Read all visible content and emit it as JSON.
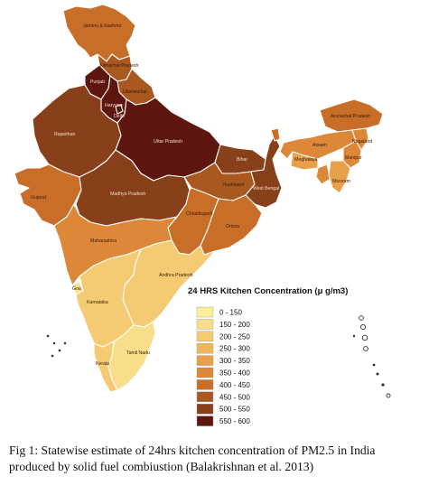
{
  "map": {
    "states": [
      {
        "id": "jk",
        "label": "Jammu & Kashmir",
        "bin": 6
      },
      {
        "id": "hp",
        "label": "Himachal Pradesh",
        "bin": 7
      },
      {
        "id": "pb",
        "label": "Punjab",
        "bin": 9
      },
      {
        "id": "hr",
        "label": "Haryana",
        "bin": 9
      },
      {
        "id": "uk",
        "label": "Uttaranchal",
        "bin": 7
      },
      {
        "id": "dl",
        "label": "Delhi",
        "bin": 9
      },
      {
        "id": "rj",
        "label": "Rajasthan",
        "bin": 8
      },
      {
        "id": "up",
        "label": "Uttar Pradesh",
        "bin": 9
      },
      {
        "id": "br",
        "label": "Bihar",
        "bin": 8
      },
      {
        "id": "gj",
        "label": "Gujarat",
        "bin": 6
      },
      {
        "id": "mp",
        "label": "Madhya Pradesh",
        "bin": 8
      },
      {
        "id": "jh",
        "label": "Jharkhand",
        "bin": 7
      },
      {
        "id": "wb",
        "label": "West Bengal",
        "bin": 8
      },
      {
        "id": "cg",
        "label": "Chhattisgarh",
        "bin": 6
      },
      {
        "id": "or",
        "label": "Orissa",
        "bin": 6
      },
      {
        "id": "mh",
        "label": "Maharashtra",
        "bin": 5
      },
      {
        "id": "ap",
        "label": "Andhra Pradesh",
        "bin": 2
      },
      {
        "id": "ka",
        "label": "Karnataka",
        "bin": 2
      },
      {
        "id": "ga",
        "label": "Goa",
        "bin": 1
      },
      {
        "id": "tn",
        "label": "Tamil Nadu",
        "bin": 1
      },
      {
        "id": "kl",
        "label": "Kerala",
        "bin": 2
      },
      {
        "id": "sk",
        "label": "",
        "bin": 6
      },
      {
        "id": "ar",
        "label": "Arunachal Pradesh",
        "bin": 6
      },
      {
        "id": "as",
        "label": "Assam",
        "bin": 5
      },
      {
        "id": "ml",
        "label": "Meghalaya",
        "bin": 4
      },
      {
        "id": "nl",
        "label": "Nagaland",
        "bin": 5
      },
      {
        "id": "mn",
        "label": "Manipur",
        "bin": 5
      },
      {
        "id": "mz",
        "label": "Mizoram",
        "bin": 4
      },
      {
        "id": "tr",
        "label": "",
        "bin": 5
      }
    ]
  },
  "legend": {
    "title": "24 HRS Kitchen Concentration (μ g/m3)",
    "items": [
      {
        "label": "0 - 150",
        "color": "#fbef99"
      },
      {
        "label": "150 - 200",
        "color": "#f8de8a"
      },
      {
        "label": "200 - 250",
        "color": "#f4cb72"
      },
      {
        "label": "250 - 300",
        "color": "#f0b65d"
      },
      {
        "label": "300 - 350",
        "color": "#e9a04a"
      },
      {
        "label": "350 - 400",
        "color": "#dc8838"
      },
      {
        "label": "400 - 450",
        "color": "#c96e29"
      },
      {
        "label": "450 - 500",
        "color": "#a95820"
      },
      {
        "label": "500 - 550",
        "color": "#874019"
      },
      {
        "label": "550 - 600",
        "color": "#5e1710"
      }
    ]
  },
  "caption": {
    "line1": "Fig 1: Statewise estimate of 24hrs kitchen concentration of PM2.5 in India",
    "line2": "produced by solid fuel combiustion (Balakrishnan et al. 2013)"
  }
}
